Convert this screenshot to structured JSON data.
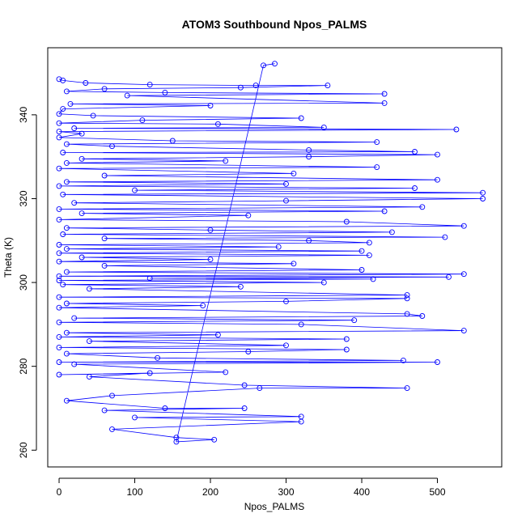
{
  "chart_data": {
    "type": "line",
    "title": "ATOM3 Southbound Npos_PALMS",
    "xlabel": "Npos_PALMS",
    "ylabel": "Theta (K)",
    "xlim": [
      -15,
      585
    ],
    "ylim": [
      256,
      356
    ],
    "x_ticks": [
      0,
      100,
      200,
      300,
      400,
      500
    ],
    "y_ticks": [
      260,
      280,
      300,
      320,
      340
    ],
    "series_color": "#0000ff",
    "marker": "open-circle",
    "grid": false,
    "series": [
      {
        "values": [
          [
            0,
            348.5
          ],
          [
            5,
            348.2
          ],
          [
            35,
            347.6
          ],
          [
            120,
            347.2
          ],
          [
            260,
            347.0
          ],
          [
            355,
            347.0
          ],
          [
            240,
            346.5
          ],
          [
            60,
            346.2
          ],
          [
            10,
            345.6
          ],
          [
            140,
            345.3
          ],
          [
            430,
            345.0
          ],
          [
            90,
            344.6
          ],
          [
            430,
            342.8
          ],
          [
            15,
            342.6
          ],
          [
            200,
            342.2
          ],
          [
            5,
            341.4
          ],
          [
            0,
            340.2
          ],
          [
            45,
            339.8
          ],
          [
            320,
            339.2
          ],
          [
            110,
            338.7
          ],
          [
            0,
            338.0
          ],
          [
            210,
            337.8
          ],
          [
            350,
            337.0
          ],
          [
            20,
            336.8
          ],
          [
            525,
            336.5
          ],
          [
            0,
            336.0
          ],
          [
            30,
            335.5
          ],
          [
            0,
            334.6
          ],
          [
            150,
            333.8
          ],
          [
            420,
            333.5
          ],
          [
            10,
            333.0
          ],
          [
            70,
            332.5
          ],
          [
            330,
            331.6
          ],
          [
            470,
            331.2
          ],
          [
            5,
            331.0
          ],
          [
            500,
            330.5
          ],
          [
            330,
            330.0
          ],
          [
            30,
            329.5
          ],
          [
            220,
            329.0
          ],
          [
            10,
            328.5
          ],
          [
            420,
            327.5
          ],
          [
            0,
            327.2
          ],
          [
            310,
            326.0
          ],
          [
            60,
            325.5
          ],
          [
            500,
            324.5
          ],
          [
            10,
            324.0
          ],
          [
            300,
            323.5
          ],
          [
            0,
            323.0
          ],
          [
            470,
            322.5
          ],
          [
            100,
            322.0
          ],
          [
            560,
            321.4
          ],
          [
            5,
            321.0
          ],
          [
            560,
            320.0
          ],
          [
            300,
            319.5
          ],
          [
            20,
            319.0
          ],
          [
            480,
            318.0
          ],
          [
            0,
            317.5
          ],
          [
            430,
            317.0
          ],
          [
            30,
            316.5
          ],
          [
            250,
            316.0
          ],
          [
            0,
            315.0
          ],
          [
            380,
            314.5
          ],
          [
            535,
            313.5
          ],
          [
            10,
            313.0
          ],
          [
            200,
            312.5
          ],
          [
            440,
            312.0
          ],
          [
            5,
            311.5
          ],
          [
            510,
            310.8
          ],
          [
            60,
            310.5
          ],
          [
            330,
            310.0
          ],
          [
            410,
            309.5
          ],
          [
            0,
            309.0
          ],
          [
            290,
            308.5
          ],
          [
            10,
            308.0
          ],
          [
            400,
            307.5
          ],
          [
            0,
            307.0
          ],
          [
            410,
            306.5
          ],
          [
            30,
            306.0
          ],
          [
            200,
            305.5
          ],
          [
            0,
            305.0
          ],
          [
            310,
            304.5
          ],
          [
            60,
            304.0
          ],
          [
            400,
            303.0
          ],
          [
            10,
            302.5
          ],
          [
            535,
            302.0
          ],
          [
            0,
            301.5
          ],
          [
            515,
            301.3
          ],
          [
            120,
            301.0
          ],
          [
            415,
            300.8
          ],
          [
            0,
            300.5
          ],
          [
            350,
            300.0
          ],
          [
            5,
            299.5
          ],
          [
            240,
            299.0
          ],
          [
            40,
            298.5
          ],
          [
            460,
            297.0
          ],
          [
            0,
            296.5
          ],
          [
            460,
            296.2
          ],
          [
            300,
            295.5
          ],
          [
            10,
            295.0
          ],
          [
            190,
            294.5
          ],
          [
            0,
            294.0
          ],
          [
            460,
            292.5
          ],
          [
            480,
            292.0
          ],
          [
            20,
            291.5
          ],
          [
            390,
            291.0
          ],
          [
            0,
            290.5
          ],
          [
            320,
            290.0
          ],
          [
            535,
            288.5
          ],
          [
            10,
            288.0
          ],
          [
            210,
            287.5
          ],
          [
            0,
            287.0
          ],
          [
            380,
            286.5
          ],
          [
            40,
            286.0
          ],
          [
            300,
            285.0
          ],
          [
            0,
            284.5
          ],
          [
            380,
            284.0
          ],
          [
            250,
            283.5
          ],
          [
            10,
            283.0
          ],
          [
            130,
            282.0
          ],
          [
            455,
            281.4
          ],
          [
            0,
            281.0
          ],
          [
            500,
            281.0
          ],
          [
            20,
            280.5
          ],
          [
            220,
            278.6
          ],
          [
            0,
            278.0
          ],
          [
            120,
            278.4
          ],
          [
            40,
            277.5
          ],
          [
            245,
            275.5
          ],
          [
            460,
            274.8
          ],
          [
            265,
            274.8
          ],
          [
            70,
            273.0
          ],
          [
            10,
            271.8
          ],
          [
            140,
            270.0
          ],
          [
            245,
            270.0
          ],
          [
            60,
            269.5
          ],
          [
            320,
            268.0
          ],
          [
            100,
            267.8
          ],
          [
            320,
            266.8
          ],
          [
            70,
            265.0
          ],
          [
            155,
            263.0
          ],
          [
            205,
            262.5
          ],
          [
            155,
            262.0
          ],
          [
            270,
            351.8
          ],
          [
            285,
            352.2
          ]
        ]
      }
    ]
  }
}
